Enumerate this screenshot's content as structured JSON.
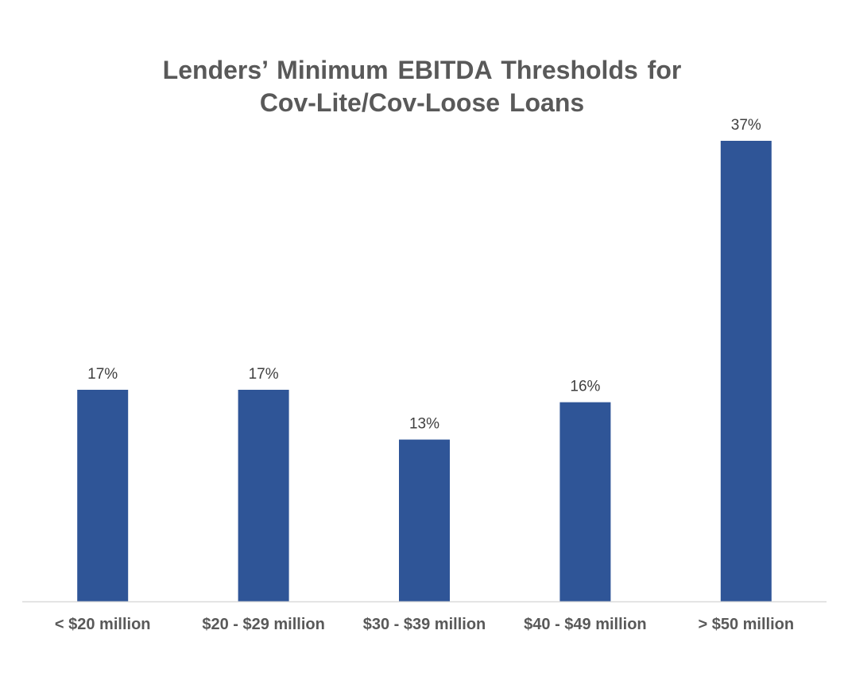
{
  "chart_data": {
    "type": "bar",
    "title_lines": [
      "Lenders’ Minimum EBITDA Thresholds for",
      "Cov-Lite/Cov-Loose Loans"
    ],
    "categories": [
      "< $20 million",
      "$20 - $29 million",
      "$30 - $39 million",
      "$40 - $49 million",
      "> $50 million"
    ],
    "values": [
      17,
      17,
      13,
      16,
      37
    ],
    "data_labels": [
      "17%",
      "17%",
      "13%",
      "16%",
      "37%"
    ],
    "value_unit": "%",
    "ylim": [
      0,
      37
    ],
    "grid": false,
    "legend": "none",
    "bar_color": "#2F5597",
    "label_color": "#404040",
    "axis_color": "#D9D9D9"
  }
}
